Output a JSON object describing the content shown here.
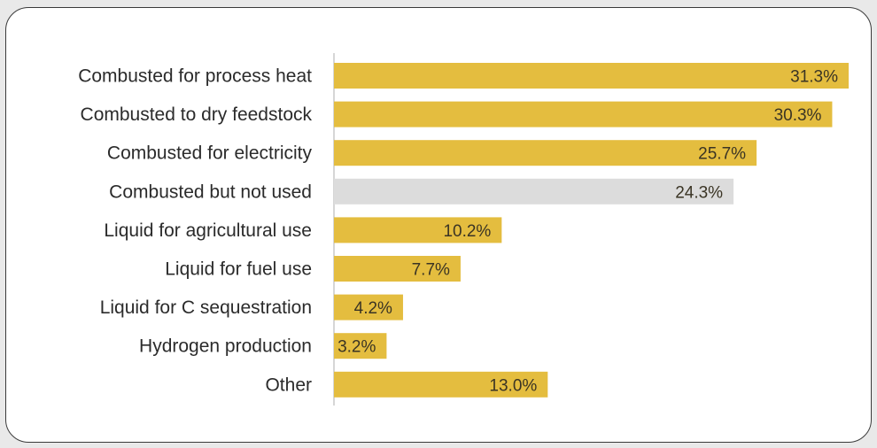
{
  "chart_data": {
    "type": "bar",
    "orientation": "horizontal",
    "categories": [
      "Combusted for process heat",
      "Combusted to dry feedstock",
      "Combusted for electricity",
      "Combusted but not used",
      "Liquid for agricultural use",
      "Liquid for fuel use",
      "Liquid for C sequestration",
      "Hydrogen production",
      "Other"
    ],
    "values": [
      31.3,
      30.3,
      25.7,
      24.3,
      10.2,
      7.7,
      4.2,
      3.2,
      13.0
    ],
    "value_labels": [
      "31.3%",
      "30.3%",
      "25.7%",
      "24.3%",
      "10.2%",
      "7.7%",
      "4.2%",
      "3.2%",
      "13.0%"
    ],
    "bar_colors": [
      "#e4bd3f",
      "#e4bd3f",
      "#e4bd3f",
      "#dcdcdc",
      "#e4bd3f",
      "#e4bd3f",
      "#e4bd3f",
      "#e4bd3f",
      "#e4bd3f"
    ],
    "title": "",
    "xlabel": "",
    "ylabel": "",
    "xlim": [
      0,
      31.3
    ],
    "grid": false,
    "legend": "none"
  }
}
